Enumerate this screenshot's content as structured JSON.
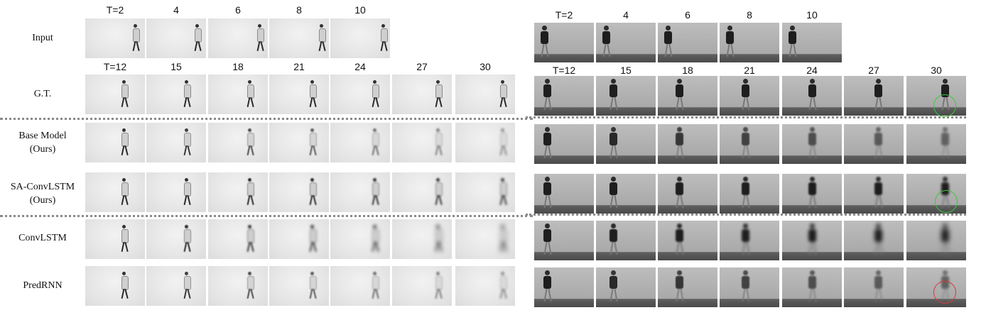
{
  "left_input_times": [
    "T=2",
    "4",
    "6",
    "8",
    "10"
  ],
  "left_pred_times": [
    "T=12",
    "15",
    "18",
    "21",
    "24",
    "27",
    "30"
  ],
  "right_input_times": [
    "T=2",
    "4",
    "6",
    "8",
    "10"
  ],
  "right_pred_times": [
    "T=12",
    "15",
    "18",
    "21",
    "24",
    "27",
    "30"
  ],
  "rows": [
    {
      "id": "input",
      "label": [
        "Input"
      ]
    },
    {
      "id": "gt",
      "label": [
        "G.T."
      ]
    },
    {
      "id": "base",
      "label": [
        "Base Model",
        "(Ours)"
      ]
    },
    {
      "id": "sa",
      "label": [
        "SA-ConvLSTM",
        "(Ours)"
      ]
    },
    {
      "id": "convlstm",
      "label": [
        "ConvLSTM"
      ]
    },
    {
      "id": "predrnn",
      "label": [
        "PredRNN"
      ]
    }
  ],
  "colors": {
    "good_circle": "#3ec93e",
    "bad_circle": "#d63a3a",
    "divider": "#8a8a8a"
  }
}
